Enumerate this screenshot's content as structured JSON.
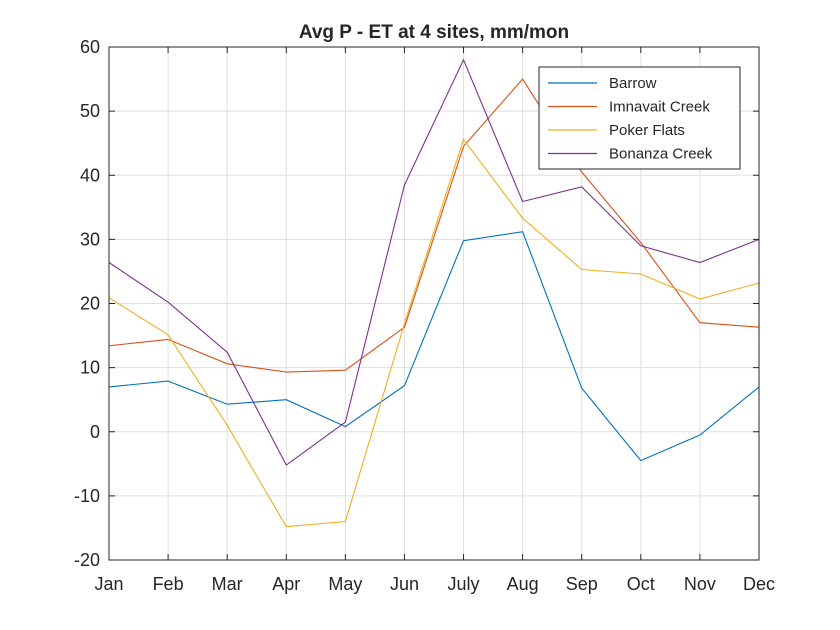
{
  "chart_data": {
    "type": "line",
    "title": "Avg P - ET at 4 sites, mm/mon",
    "xlabel": "",
    "ylabel": "",
    "categories": [
      "Jan",
      "Feb",
      "Mar",
      "Apr",
      "May",
      "Jun",
      "July",
      "Aug",
      "Sep",
      "Oct",
      "Nov",
      "Dec"
    ],
    "ylim": [
      -20,
      60
    ],
    "yticks": [
      -20,
      -10,
      0,
      10,
      20,
      30,
      40,
      50,
      60
    ],
    "grid": true,
    "legend_position": "top-right",
    "series": [
      {
        "name": "Barrow",
        "color": "#0072BD",
        "values": [
          7.0,
          7.9,
          4.3,
          5.0,
          0.8,
          7.2,
          29.8,
          31.2,
          6.8,
          -4.5,
          -0.5,
          7.0
        ]
      },
      {
        "name": "Imnavait Creek",
        "color": "#D95319",
        "values": [
          13.4,
          14.4,
          10.6,
          9.3,
          9.6,
          16.3,
          44.5,
          55.0,
          40.5,
          29.5,
          17.0,
          16.3
        ]
      },
      {
        "name": "Poker Flats",
        "color": "#EDB120",
        "values": [
          20.9,
          15.1,
          1.0,
          -14.8,
          -14.0,
          16.9,
          45.6,
          33.3,
          25.3,
          24.6,
          20.7,
          23.2
        ]
      },
      {
        "name": "Bonanza Creek",
        "color": "#7E2F8E",
        "values": [
          26.4,
          20.2,
          12.4,
          -5.2,
          1.5,
          38.5,
          58.0,
          35.9,
          38.2,
          29.0,
          26.4,
          30.0
        ]
      }
    ]
  }
}
